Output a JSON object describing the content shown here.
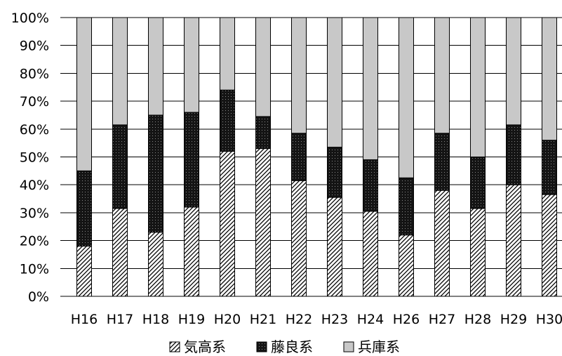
{
  "chart_data": {
    "type": "bar",
    "stacked": true,
    "normalized": true,
    "title": "",
    "xlabel": "",
    "ylabel": "",
    "ylim": [
      0,
      100
    ],
    "y_ticks": [
      "0%",
      "10%",
      "20%",
      "30%",
      "40%",
      "50%",
      "60%",
      "70%",
      "80%",
      "90%",
      "100%"
    ],
    "grid": "horizontal",
    "legend_position": "bottom",
    "categories": [
      "H16",
      "H17",
      "H18",
      "H19",
      "H20",
      "H21",
      "H22",
      "H23",
      "H24",
      "H26",
      "H27",
      "H28",
      "H29",
      "H30"
    ],
    "series": [
      {
        "name": "気高系",
        "pattern": "diagonal-hatch",
        "color": "#000000",
        "values": [
          18,
          31.5,
          23,
          32,
          52,
          53,
          41.5,
          35.5,
          30.5,
          22,
          38,
          31.5,
          40,
          36.5
        ]
      },
      {
        "name": "藤良系",
        "pattern": "dark-dotted",
        "color": "#1a1a1a",
        "values": [
          27,
          30,
          42,
          34,
          22,
          11.5,
          17,
          18,
          18.5,
          20.5,
          20.5,
          18.5,
          21.5,
          19.5
        ]
      },
      {
        "name": "兵庫系",
        "pattern": "solid",
        "color": "#c8c8c8",
        "values": [
          55,
          38.5,
          35,
          34,
          26,
          35.5,
          41.5,
          46.5,
          51,
          57.5,
          41.5,
          50,
          38.5,
          44
        ]
      }
    ]
  }
}
